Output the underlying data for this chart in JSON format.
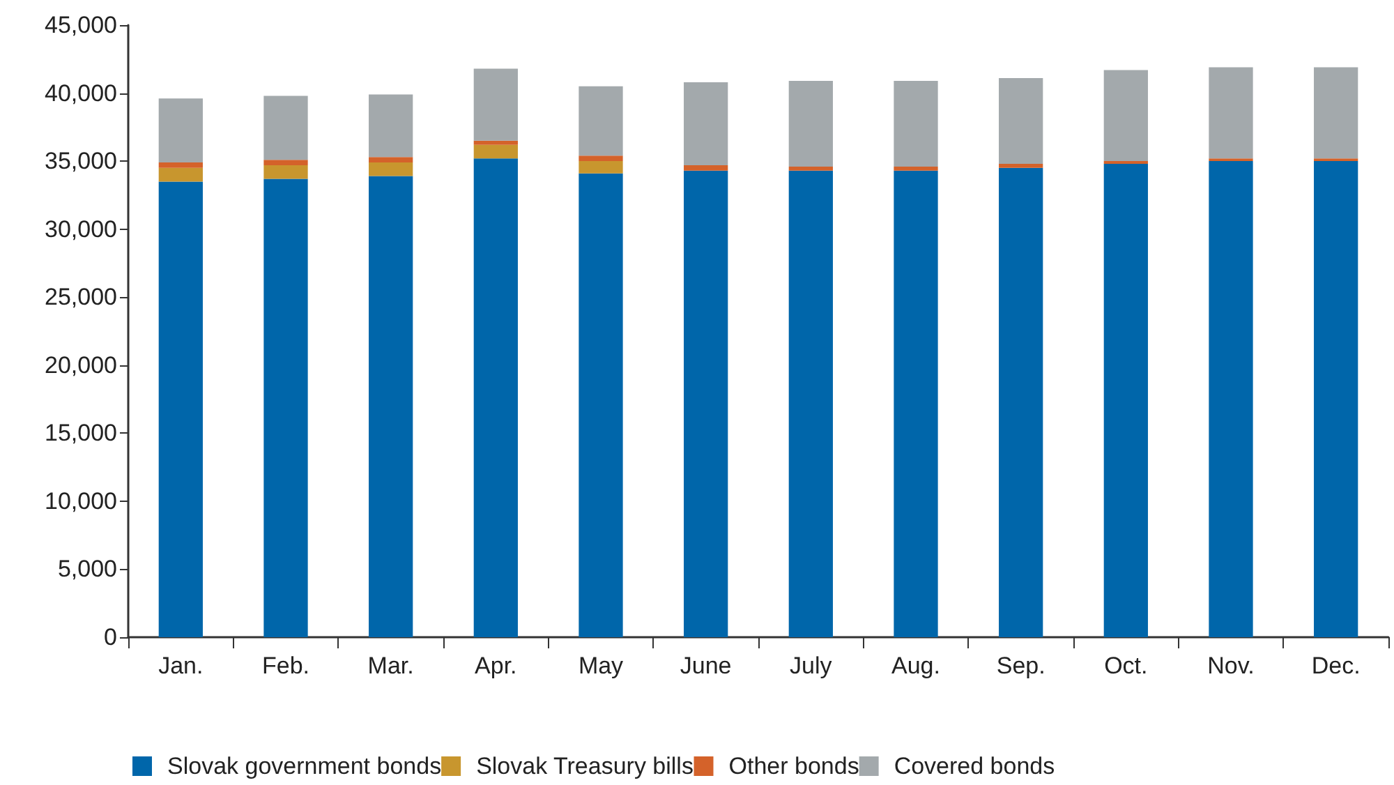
{
  "chart_data": {
    "type": "bar",
    "stacked": true,
    "categories": [
      "Jan.",
      "Feb.",
      "Mar.",
      "Apr.",
      "May",
      "June",
      "July",
      "Aug.",
      "Sep.",
      "Oct.",
      "Nov.",
      "Dec."
    ],
    "series": [
      {
        "name": "Slovak government bonds",
        "color": "#0066aa",
        "values": [
          33500,
          33700,
          33900,
          35200,
          34100,
          34300,
          34300,
          34300,
          34500,
          34800,
          35000,
          35000
        ]
      },
      {
        "name": "Slovak Treasury bills",
        "color": "#c8962e",
        "values": [
          1000,
          1000,
          1000,
          1000,
          900,
          0,
          0,
          0,
          0,
          0,
          0,
          0
        ]
      },
      {
        "name": "Other bonds",
        "color": "#d4622a",
        "values": [
          400,
          400,
          400,
          300,
          400,
          400,
          300,
          300,
          300,
          200,
          200,
          200
        ]
      },
      {
        "name": "Covered bonds",
        "color": "#a3a9ac",
        "values": [
          4700,
          4700,
          4600,
          5300,
          5100,
          6100,
          6300,
          6300,
          6300,
          6700,
          6700,
          6700
        ]
      }
    ],
    "ylim": [
      0,
      45000
    ],
    "yticks": [
      0,
      {
        "value": 5000,
        "label": "5,000"
      },
      {
        "value": 10000,
        "label": "10,000"
      },
      {
        "value": 15000,
        "label": "15,000"
      },
      {
        "value": 20000,
        "label": "20,000"
      },
      {
        "value": 25000,
        "label": "25,000"
      },
      {
        "value": 30000,
        "label": "30,000"
      },
      {
        "value": 35000,
        "label": "35,000"
      },
      {
        "value": 40000,
        "label": "40,000"
      },
      {
        "value": 45000,
        "label": "45,000"
      }
    ],
    "grid": false,
    "legend": "bottom left"
  }
}
